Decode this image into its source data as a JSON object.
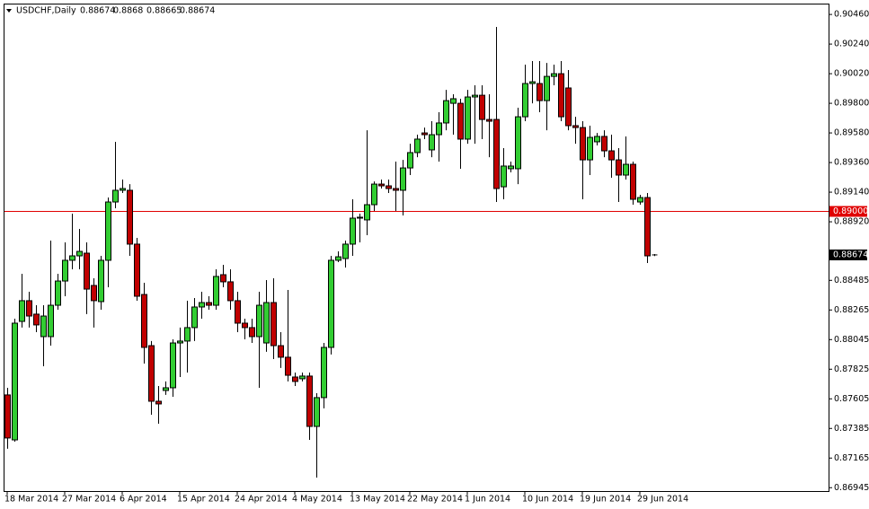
{
  "chart_data": {
    "type": "candlestick",
    "symbol": "USDCHF,Daily",
    "categories": [
      "18 Mar 2014",
      null,
      null,
      null,
      null,
      null,
      null,
      null,
      "27 Mar 2014",
      null,
      null,
      null,
      null,
      null,
      null,
      null,
      "6 Apr 2014",
      null,
      null,
      null,
      null,
      null,
      null,
      null,
      "15 Apr 2014",
      null,
      null,
      null,
      null,
      null,
      null,
      null,
      "24 Apr 2014",
      null,
      null,
      null,
      null,
      null,
      null,
      null,
      "4 May 2014",
      null,
      null,
      null,
      null,
      null,
      null,
      null,
      "13 May 2014",
      null,
      null,
      null,
      null,
      null,
      null,
      null,
      "22 May 2014",
      null,
      null,
      null,
      null,
      null,
      null,
      null,
      "1 Jun 2014",
      null,
      null,
      null,
      null,
      null,
      null,
      null,
      "10 Jun 2014",
      null,
      null,
      null,
      null,
      null,
      null,
      null,
      "19 Jun 2014",
      null,
      null,
      null,
      null,
      null,
      null,
      null,
      "29 Jun 2014",
      null,
      null
    ],
    "open": [
      0.87634,
      0.873,
      0.8818,
      0.88334,
      0.88234,
      0.88067,
      0.88067,
      0.883,
      0.8848,
      0.88634,
      0.88667,
      0.88687,
      0.88447,
      0.88327,
      0.88634,
      0.89067,
      0.89154,
      0.89154,
      0.88754,
      0.8838,
      0.88,
      0.87587,
      0.87667,
      0.87687,
      0.8802,
      0.88034,
      0.88134,
      0.88287,
      0.8832,
      0.883,
      0.88527,
      0.88474,
      0.88334,
      0.88167,
      0.88134,
      0.88067,
      0.8802,
      0.8832,
      0.88,
      0.87914,
      0.87767,
      0.87754,
      0.87774,
      0.874,
      0.87614,
      0.87987,
      0.88634,
      0.88647,
      0.88754,
      0.88947,
      0.88934,
      0.89047,
      0.892,
      0.89187,
      0.89167,
      0.89154,
      0.8932,
      0.89434,
      0.8958,
      0.89454,
      0.89567,
      0.89654,
      0.898,
      0.898,
      0.89534,
      0.89847,
      0.8986,
      0.8968,
      0.8968,
      0.8918,
      0.89314,
      0.89314,
      0.897,
      0.89947,
      0.89947,
      0.8982,
      0.9,
      0.9002,
      0.89914,
      0.89634,
      0.8962,
      0.8938,
      0.89514,
      0.89554,
      0.89447,
      0.8938,
      0.89267,
      0.89347,
      0.89067,
      0.891,
      0.88674
    ],
    "high": [
      0.87687,
      0.882,
      0.88534,
      0.884,
      0.883,
      0.883,
      0.8878,
      0.88534,
      0.88767,
      0.8898,
      0.88867,
      0.88767,
      0.885,
      0.88667,
      0.891,
      0.89514,
      0.89234,
      0.892,
      0.888,
      0.88467,
      0.88034,
      0.877,
      0.87734,
      0.88047,
      0.88134,
      0.88334,
      0.88354,
      0.884,
      0.88367,
      0.88567,
      0.886,
      0.88567,
      0.884,
      0.882,
      0.882,
      0.884,
      0.88487,
      0.885,
      0.881,
      0.88414,
      0.878,
      0.878,
      0.878,
      0.87647,
      0.8802,
      0.88667,
      0.887,
      0.8878,
      0.89087,
      0.8898,
      0.896,
      0.8922,
      0.89234,
      0.89234,
      0.89367,
      0.8938,
      0.895,
      0.89567,
      0.8962,
      0.89667,
      0.89734,
      0.899,
      0.89867,
      0.89834,
      0.899,
      0.89934,
      0.89934,
      0.89867,
      0.90367,
      0.89467,
      0.89367,
      0.89767,
      0.90087,
      0.90114,
      0.90114,
      0.901,
      0.90087,
      0.90114,
      0.90047,
      0.897,
      0.89667,
      0.89634,
      0.8958,
      0.896,
      0.89567,
      0.89467,
      0.89554,
      0.89367,
      0.8912,
      0.89134,
      0.8868
    ],
    "low": [
      0.87234,
      0.87287,
      0.88134,
      0.88134,
      0.881,
      0.87847,
      0.88,
      0.88267,
      0.88367,
      0.88567,
      0.88567,
      0.88234,
      0.88134,
      0.88267,
      0.88434,
      0.8902,
      0.89134,
      0.88667,
      0.88334,
      0.87867,
      0.87487,
      0.8742,
      0.87634,
      0.8762,
      0.87767,
      0.878,
      0.88034,
      0.882,
      0.88267,
      0.88267,
      0.88434,
      0.88267,
      0.881,
      0.88047,
      0.8802,
      0.87687,
      0.87954,
      0.879,
      0.87834,
      0.87734,
      0.877,
      0.87734,
      0.873,
      0.8702,
      0.87534,
      0.87934,
      0.8862,
      0.8858,
      0.88667,
      0.88767,
      0.8882,
      0.89,
      0.89167,
      0.89134,
      0.89,
      0.88967,
      0.89267,
      0.894,
      0.89534,
      0.894,
      0.89367,
      0.896,
      0.89567,
      0.89314,
      0.895,
      0.895,
      0.89534,
      0.894,
      0.89067,
      0.89087,
      0.89287,
      0.892,
      0.89667,
      0.898,
      0.89734,
      0.896,
      0.89934,
      0.89667,
      0.896,
      0.895,
      0.89087,
      0.89267,
      0.89487,
      0.894,
      0.89247,
      0.89067,
      0.89234,
      0.89047,
      0.89047,
      0.88614,
      0.88665
    ],
    "close": [
      0.87314,
      0.88167,
      0.88334,
      0.8822,
      0.88154,
      0.8822,
      0.883,
      0.8848,
      0.88634,
      0.88667,
      0.887,
      0.8842,
      0.88334,
      0.88634,
      0.89067,
      0.89154,
      0.89167,
      0.88754,
      0.88367,
      0.87987,
      0.87587,
      0.87567,
      0.87687,
      0.8802,
      0.88034,
      0.88134,
      0.88287,
      0.8832,
      0.883,
      0.88514,
      0.88474,
      0.88334,
      0.88167,
      0.88134,
      0.88067,
      0.883,
      0.8832,
      0.88,
      0.87914,
      0.8778,
      0.87734,
      0.87774,
      0.874,
      0.87614,
      0.87987,
      0.88634,
      0.8866,
      0.88754,
      0.88947,
      0.88954,
      0.89047,
      0.892,
      0.89187,
      0.89167,
      0.89154,
      0.8932,
      0.89434,
      0.89534,
      0.89567,
      0.89567,
      0.89654,
      0.8982,
      0.89834,
      0.89534,
      0.89847,
      0.8986,
      0.8968,
      0.89667,
      0.89167,
      0.89334,
      0.89334,
      0.897,
      0.89947,
      0.8996,
      0.8982,
      0.9,
      0.9002,
      0.897,
      0.89634,
      0.8962,
      0.8938,
      0.89547,
      0.89554,
      0.89447,
      0.8938,
      0.89267,
      0.89347,
      0.89087,
      0.891,
      0.88667,
      0.88674
    ],
    "up_color": "#32cd32",
    "down_color": "#c00000",
    "ylim": [
      0.8692,
      0.90534
    ],
    "yticks": [
      {
        "value": 0.9046,
        "label": "0.90460"
      },
      {
        "value": 0.9024,
        "label": "0.90240"
      },
      {
        "value": 0.9002,
        "label": "0.90020"
      },
      {
        "value": 0.898,
        "label": "0.89800"
      },
      {
        "value": 0.8958,
        "label": "0.89580"
      },
      {
        "value": 0.8936,
        "label": "0.89360"
      },
      {
        "value": 0.8914,
        "label": "0.89140"
      },
      {
        "value": 0.8892,
        "label": "0.88920"
      },
      0.88485,
      0.88265,
      0.88045,
      0.87825,
      0.87605,
      0.87385,
      0.87165,
      0.86945
    ],
    "hline": {
      "value": 0.89,
      "label": "0.89000",
      "color": "#e00000"
    },
    "grid": false
  }
}
